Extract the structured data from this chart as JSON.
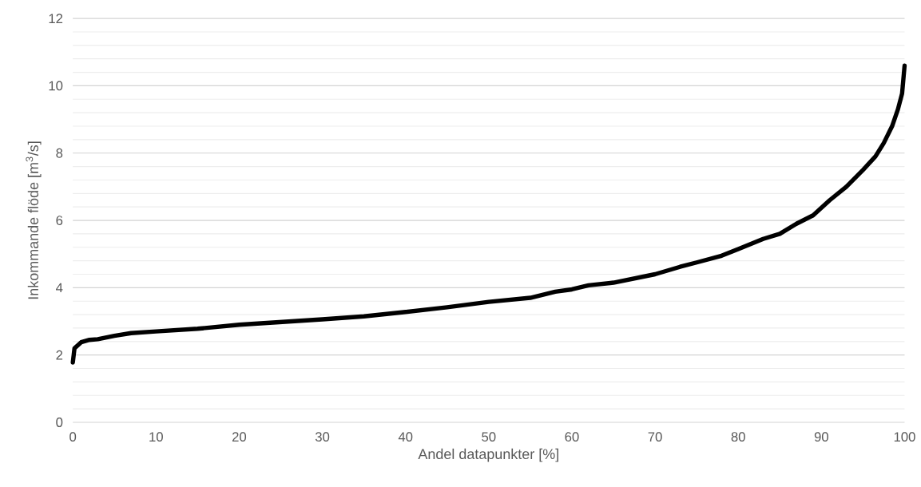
{
  "chart_data": {
    "type": "line",
    "xlabel": "Andel datapunkter [%]",
    "ylabel": "Inkommande flöde [m$^{3}$/s]",
    "x": [
      0,
      0.2,
      1,
      2,
      3,
      5,
      7,
      10,
      15,
      20,
      25,
      30,
      35,
      40,
      45,
      50,
      55,
      58,
      60,
      62,
      65,
      70,
      73,
      75,
      78,
      80,
      83,
      85,
      87,
      89,
      91,
      93,
      95,
      96.5,
      97.5,
      98.5,
      99.2,
      99.7,
      100
    ],
    "series": [
      {
        "color": "#000000",
        "values": [
          1.78,
          2.2,
          2.38,
          2.45,
          2.47,
          2.57,
          2.65,
          2.7,
          2.78,
          2.9,
          2.98,
          3.06,
          3.15,
          3.28,
          3.42,
          3.58,
          3.7,
          3.88,
          3.95,
          4.07,
          4.15,
          4.4,
          4.62,
          4.75,
          4.95,
          5.15,
          5.45,
          5.6,
          5.9,
          6.15,
          6.6,
          7.0,
          7.5,
          7.9,
          8.3,
          8.8,
          9.3,
          9.77,
          10.6
        ]
      }
    ],
    "xlim": [
      0,
      100
    ],
    "xticks": [
      0,
      10,
      20,
      30,
      40,
      50,
      60,
      70,
      80,
      90,
      100
    ],
    "ylim": [
      0,
      12
    ],
    "yticks": [
      0,
      2,
      4,
      6,
      8,
      10,
      12
    ],
    "grid": "y",
    "marker": "none",
    "line_style": "solid"
  }
}
